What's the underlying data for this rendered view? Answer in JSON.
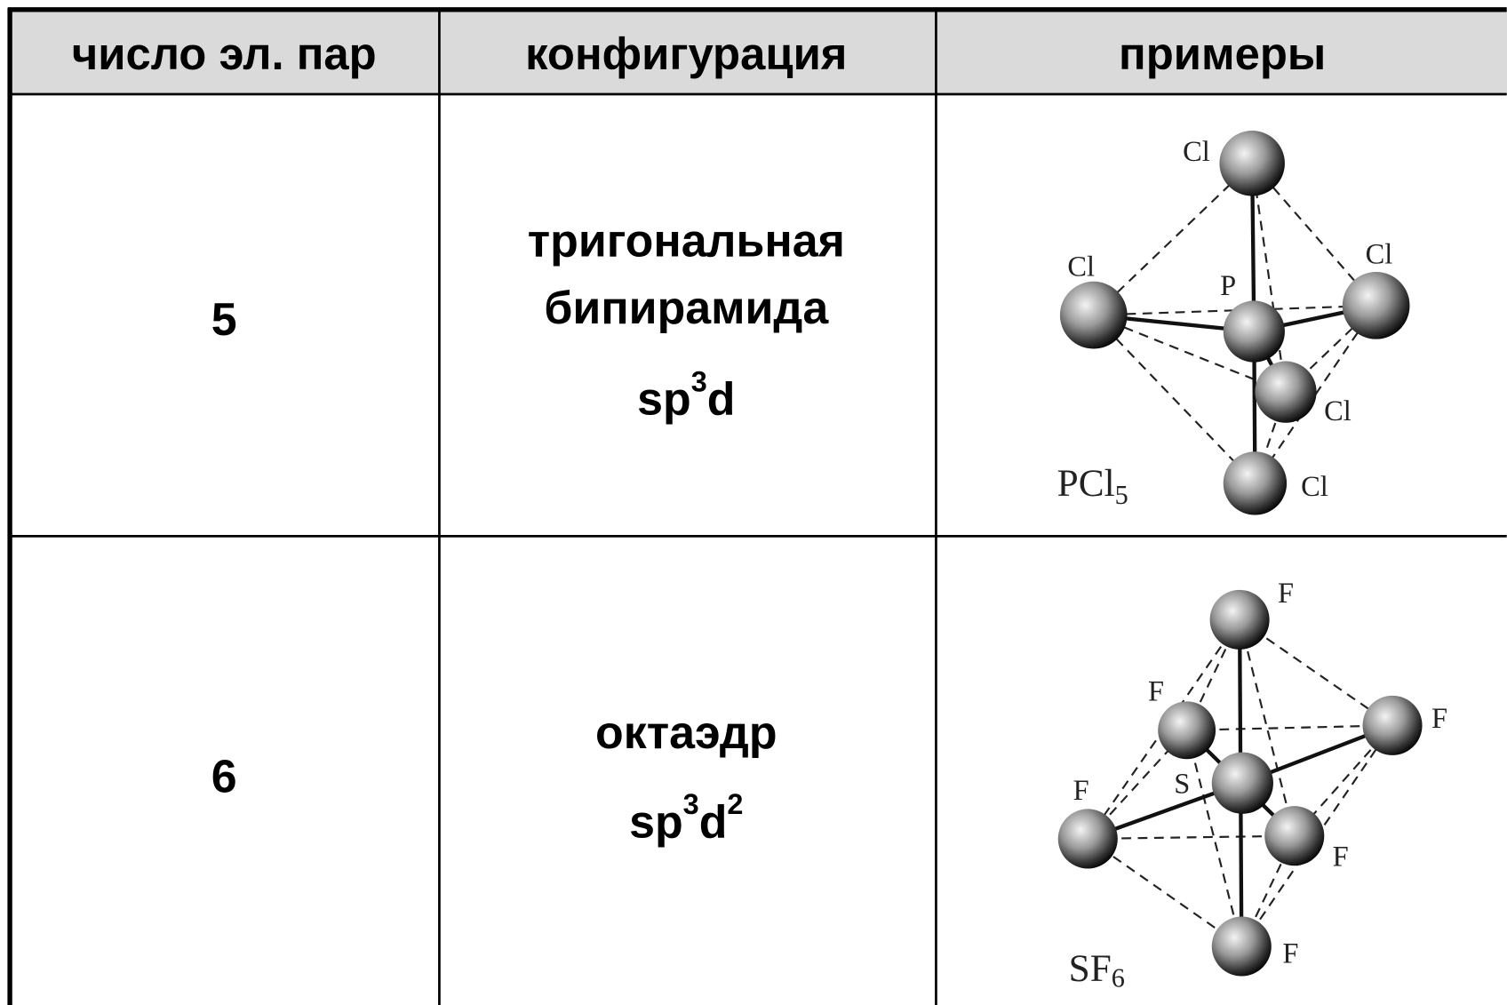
{
  "table": {
    "header": [
      "число эл. пар",
      "конфигурация",
      "примеры"
    ],
    "rows": [
      {
        "pairs": "5",
        "configuration": [
          "тригональная",
          "бипирамида"
        ],
        "hybridization": [
          "sp",
          "3",
          "d"
        ],
        "example": {
          "formula": [
            "PCl",
            "5"
          ],
          "labels": [
            "Cl",
            "Cl",
            "Cl",
            "P",
            "Cl",
            "Cl"
          ]
        }
      },
      {
        "pairs": "6",
        "configuration": [
          "октаэдр"
        ],
        "hybridization": [
          "sp",
          "3",
          "d",
          "2"
        ],
        "example": {
          "formula": [
            "SF",
            "6"
          ],
          "labels": [
            "F",
            "F",
            "F",
            "S",
            "F",
            "F",
            "F"
          ]
        }
      }
    ]
  }
}
